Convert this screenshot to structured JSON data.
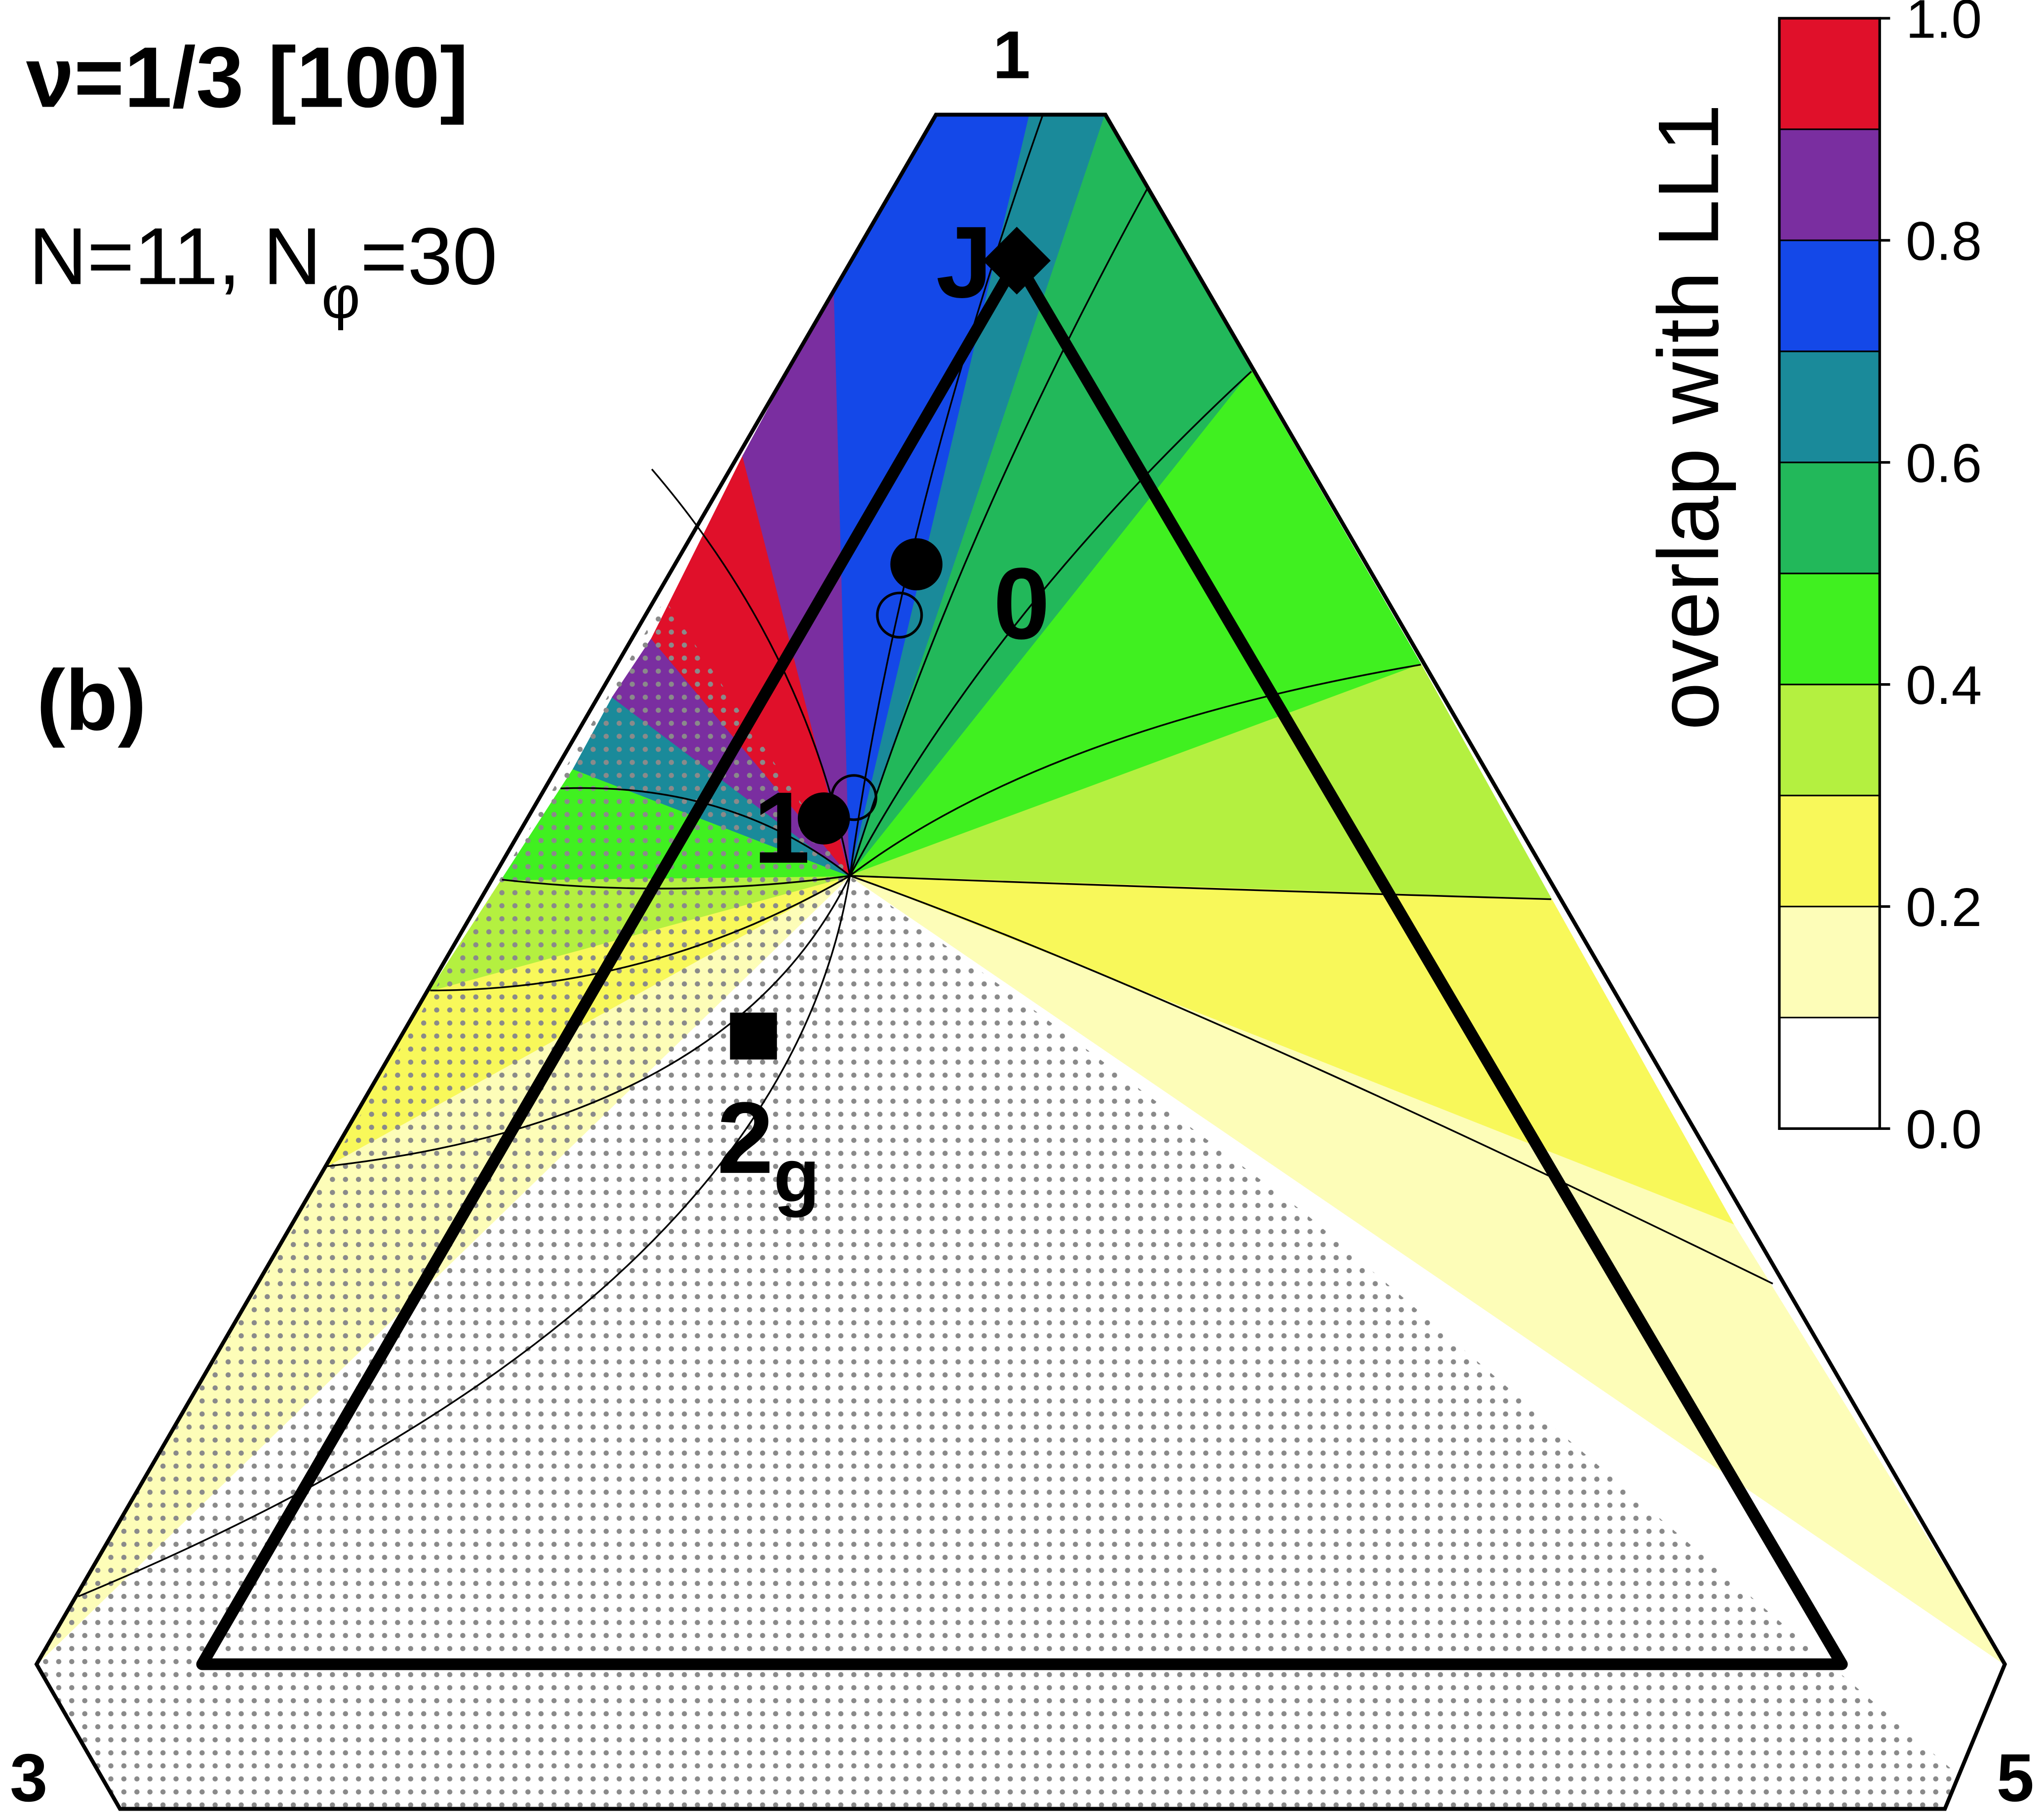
{
  "chart_data": {
    "type": "ternary-contour",
    "title": "ν=1/3 [100]",
    "subtitle": {
      "text": "N=11, N",
      "sub": "φ",
      "tail": "=30"
    },
    "panel_label": "(b)",
    "corner_labels": [
      "1",
      "3",
      "5"
    ],
    "points": [
      {
        "label": "J",
        "marker": "diamond"
      },
      {
        "label": "0",
        "marker": "circle"
      },
      {
        "label": "1",
        "marker": "circle"
      },
      {
        "label": "2",
        "sub": "g",
        "marker": "square"
      }
    ],
    "colorbar": {
      "label": "overlap with LL1",
      "lim": [
        0,
        1
      ],
      "ticks": [
        {
          "value": 0,
          "label": "0.0"
        },
        {
          "value": 0.2,
          "label": "0.2"
        },
        {
          "value": 0.4,
          "label": "0.4"
        },
        {
          "value": 0.6,
          "label": "0.6"
        },
        {
          "value": 0.8,
          "label": "0.8"
        },
        {
          "value": 1,
          "label": "1.0"
        }
      ],
      "levels": [
        0,
        0.1,
        0.2,
        0.3,
        0.4,
        0.5,
        0.6,
        0.7,
        0.8,
        0.9,
        1
      ],
      "colors": [
        "#ffffff",
        "#fdfdb8",
        "#f8f85a",
        "#b4f040",
        "#40f020",
        "#22b85a",
        "#1a8a9a",
        "#1448e8",
        "#7a2ea0",
        "#e0102a"
      ]
    }
  }
}
